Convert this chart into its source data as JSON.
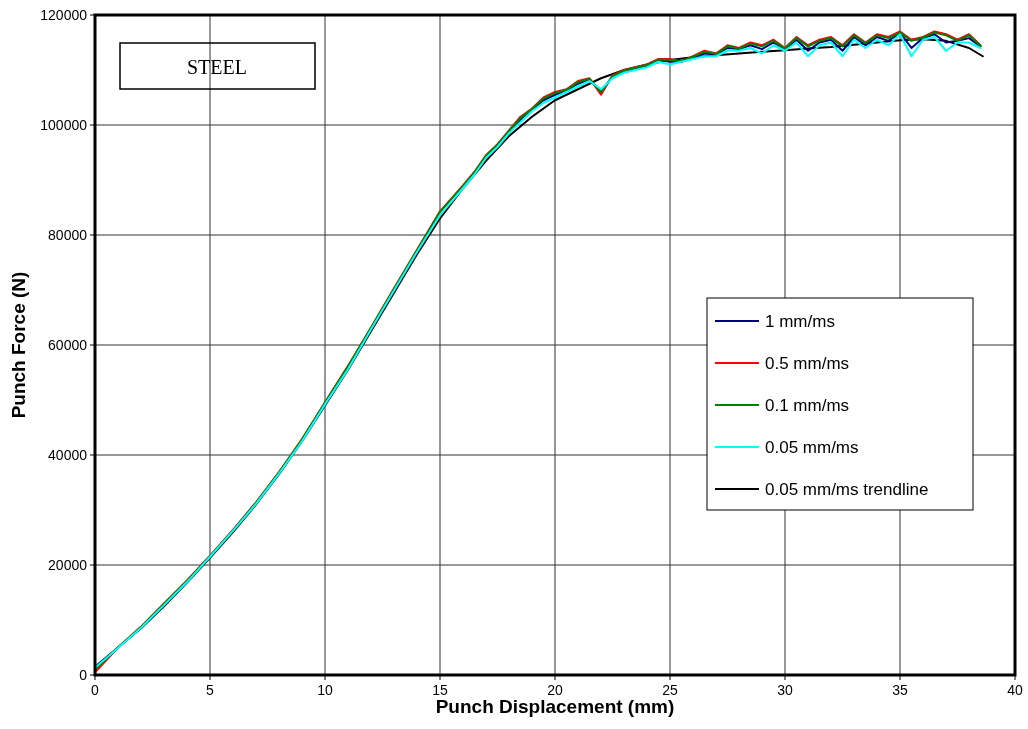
{
  "chart_data": {
    "type": "line",
    "xlabel": "Punch Displacement (mm)",
    "ylabel": "Punch Force (N)",
    "annotations": [
      "STEEL"
    ],
    "xlim": [
      0,
      40
    ],
    "xticks": [
      0,
      5,
      10,
      15,
      20,
      25,
      30,
      35,
      40
    ],
    "ylim": [
      0,
      120000
    ],
    "yticks": [
      0,
      20000,
      40000,
      60000,
      80000,
      100000,
      120000
    ],
    "grid": true,
    "legend": "right",
    "marker": "none",
    "line_style": "solid",
    "x": [
      0,
      1,
      2,
      3,
      4,
      5,
      6,
      7,
      8,
      9,
      10,
      11,
      12,
      13,
      14,
      15,
      16,
      16.5,
      17,
      17.5,
      18,
      18.5,
      19,
      19.5,
      20,
      20.5,
      21,
      21.5,
      22,
      22.5,
      23,
      23.5,
      24,
      24.5,
      25,
      25.5,
      26,
      26.5,
      27,
      27.5,
      28,
      28.5,
      29,
      29.5,
      30,
      30.5,
      31,
      31.5,
      32,
      32.5,
      33,
      33.5,
      34,
      34.5,
      35,
      35.5,
      36,
      36.5,
      37,
      37.5,
      38,
      38.5
    ],
    "series": [
      {
        "name": "1 mm/ms",
        "color": "#000080",
        "values": [
          null,
          null,
          null,
          null,
          null,
          null,
          null,
          null,
          null,
          null,
          null,
          null,
          null,
          null,
          null,
          null,
          null,
          null,
          null,
          null,
          98800,
          101000,
          102800,
          104500,
          105500,
          106300,
          107500,
          108300,
          106000,
          108800,
          109800,
          110300,
          110800,
          111800,
          111500,
          111500,
          112300,
          113000,
          112800,
          114000,
          113800,
          114500,
          113800,
          115000,
          113800,
          115500,
          113500,
          115000,
          115500,
          113500,
          116000,
          114500,
          116000,
          115300,
          116800,
          114000,
          115800,
          116500,
          115000,
          115300,
          115800,
          114300
        ]
      },
      {
        "name": "0.5 mm/ms",
        "color": "#ff0000",
        "values": [
          500,
          5000,
          8800,
          13000,
          17200,
          21700,
          26400,
          31400,
          36900,
          42900,
          49600,
          56200,
          63200,
          70300,
          77300,
          84300,
          89000,
          91500,
          94500,
          96500,
          99000,
          101500,
          103000,
          105000,
          106000,
          106500,
          108000,
          108500,
          105500,
          109000,
          110000,
          110500,
          111000,
          112000,
          112000,
          111500,
          112500,
          113500,
          113000,
          114500,
          114000,
          115000,
          114500,
          115500,
          114000,
          116000,
          114500,
          115500,
          116000,
          114500,
          116500,
          115000,
          116500,
          116000,
          117000,
          115500,
          116000,
          117000,
          116500,
          115500,
          116500,
          114500
        ]
      },
      {
        "name": "0.1 mm/ms",
        "color": "#008000",
        "values": [
          1000,
          5000,
          8700,
          12900,
          17100,
          21600,
          26300,
          31300,
          36800,
          42800,
          49500,
          56100,
          63100,
          70200,
          77200,
          84200,
          88900,
          91400,
          94400,
          96400,
          98900,
          101300,
          102900,
          104800,
          105800,
          106400,
          107800,
          108400,
          106000,
          108900,
          109900,
          110400,
          110900,
          111900,
          111800,
          111600,
          112400,
          113300,
          112900,
          114300,
          113900,
          114800,
          114300,
          115300,
          113900,
          115800,
          114300,
          115300,
          115800,
          114300,
          116300,
          114900,
          116300,
          115800,
          116800,
          115300,
          115900,
          116800,
          116300,
          115300,
          116300,
          114400
        ]
      },
      {
        "name": "0.05 mm/ms",
        "color": "#00ffff",
        "values": [
          1300,
          4900,
          8600,
          12700,
          16900,
          21500,
          26200,
          31100,
          36600,
          42500,
          49200,
          55600,
          62800,
          69900,
          76900,
          83600,
          88500,
          91000,
          94000,
          96000,
          98500,
          100500,
          102500,
          104000,
          105000,
          106000,
          107000,
          108000,
          106500,
          108500,
          109500,
          110000,
          110500,
          111500,
          111000,
          111500,
          112000,
          112500,
          112500,
          113500,
          113500,
          114000,
          113000,
          114500,
          113500,
          115000,
          112500,
          114500,
          115000,
          112500,
          115500,
          114000,
          115500,
          114500,
          116500,
          112500,
          115500,
          116000,
          113500,
          115000,
          115000,
          114000
        ]
      },
      {
        "name": "0.05 mm/ms trendline",
        "color": "#000000",
        "x": [
          0,
          1,
          2,
          3,
          4,
          5,
          6,
          7,
          8,
          9,
          10,
          11,
          12,
          13,
          14,
          15,
          16,
          17,
          18,
          19,
          20,
          21,
          22,
          23,
          24,
          25,
          26,
          27,
          28,
          29,
          30,
          31,
          32,
          33,
          34,
          35,
          36,
          37,
          38,
          38.6
        ],
        "values": [
          1500,
          5000,
          8500,
          12500,
          16800,
          21300,
          26000,
          31000,
          36500,
          42500,
          49000,
          55500,
          62500,
          69500,
          76500,
          83000,
          88500,
          93500,
          98000,
          101500,
          104500,
          106500,
          108500,
          110000,
          111000,
          111800,
          112300,
          112700,
          113000,
          113300,
          113600,
          113900,
          114200,
          114600,
          115000,
          115400,
          115600,
          115300,
          114000,
          112500
        ]
      }
    ]
  }
}
